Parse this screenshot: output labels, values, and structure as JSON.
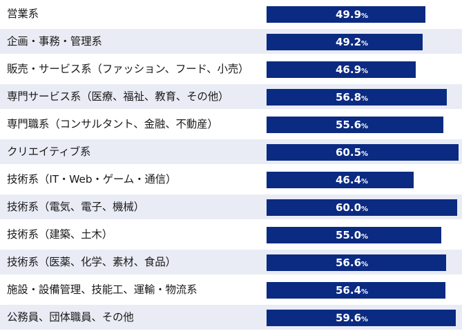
{
  "chart_data": {
    "type": "bar",
    "orientation": "horizontal",
    "unit": "%",
    "categories": [
      "営業系",
      "企画・事務・管理系",
      "販売・サービス系（ファッション、フード、小売）",
      "専門サービス系（医療、福祉、教育、その他）",
      "専門職系（コンサルタント、金融、不動産）",
      "クリエイティブ系",
      "技術系（IT・Web・ゲーム・通信）",
      "技術系（電気、電子、機械）",
      "技術系（建築、土木）",
      "技術系（医薬、化学、素材、食品）",
      "施設・設備管理、技能工、運輸・物流系",
      "公務員、団体職員、その他"
    ],
    "values": [
      49.9,
      49.2,
      46.9,
      56.8,
      55.6,
      60.5,
      46.4,
      60.0,
      55.0,
      56.6,
      56.4,
      59.6
    ],
    "value_labels": [
      "49.9",
      "49.2",
      "46.9",
      "56.8",
      "55.6",
      "60.5",
      "46.4",
      "60.0",
      "55.0",
      "56.6",
      "56.4",
      "59.6"
    ],
    "colors": {
      "bar": "#0b2a82",
      "row_alt": "#e9ecf5",
      "row_plain": "#ffffff"
    },
    "grid": false,
    "legend": "none"
  }
}
